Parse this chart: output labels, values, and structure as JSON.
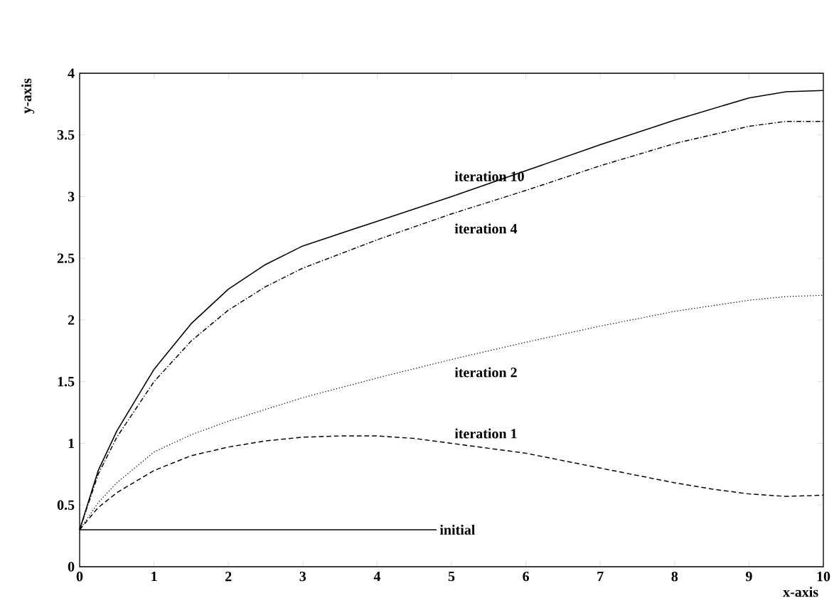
{
  "chart_data": {
    "type": "line",
    "xlabel": "x-axis",
    "ylabel": "y-axis",
    "xlim": [
      0,
      10
    ],
    "ylim": [
      0,
      4
    ],
    "xticks": [
      0,
      1,
      2,
      3,
      4,
      5,
      6,
      7,
      8,
      9,
      10
    ],
    "yticks": [
      0,
      0.5,
      1,
      1.5,
      2,
      2.5,
      3,
      3.5,
      4
    ],
    "grid": false,
    "legend": false,
    "series": [
      {
        "name": "initial",
        "color": "#000000",
        "line_style": "solid",
        "x": [
          0,
          4.8
        ],
        "values": [
          0.3,
          0.3
        ]
      },
      {
        "name": "iteration 1",
        "color": "#000000",
        "line_style": "dashed",
        "x": [
          0,
          0.25,
          0.5,
          1,
          1.5,
          2,
          2.5,
          3,
          3.5,
          4,
          4.5,
          5,
          6,
          7,
          8,
          8.5,
          9,
          9.5,
          10
        ],
        "values": [
          0.3,
          0.48,
          0.6,
          0.78,
          0.9,
          0.97,
          1.02,
          1.05,
          1.06,
          1.06,
          1.04,
          1.0,
          0.92,
          0.8,
          0.68,
          0.63,
          0.59,
          0.57,
          0.58
        ]
      },
      {
        "name": "iteration 2",
        "color": "#000000",
        "line_style": "dotted",
        "x": [
          0,
          0.25,
          0.5,
          1,
          1.5,
          2,
          3,
          4,
          5,
          6,
          7,
          8,
          9,
          9.5,
          10
        ],
        "values": [
          0.3,
          0.52,
          0.68,
          0.93,
          1.07,
          1.18,
          1.37,
          1.53,
          1.68,
          1.82,
          1.95,
          2.07,
          2.16,
          2.19,
          2.2
        ]
      },
      {
        "name": "iteration 4",
        "color": "#000000",
        "line_style": "dashdot",
        "x": [
          0,
          0.25,
          0.5,
          1,
          1.5,
          2,
          2.5,
          3,
          4,
          5,
          6,
          7,
          8,
          9,
          9.5,
          10
        ],
        "values": [
          0.3,
          0.75,
          1.05,
          1.5,
          1.83,
          2.08,
          2.27,
          2.42,
          2.65,
          2.86,
          3.05,
          3.25,
          3.43,
          3.57,
          3.61,
          3.61
        ]
      },
      {
        "name": "iteration 10",
        "color": "#000000",
        "line_style": "solid",
        "x": [
          0,
          0.25,
          0.5,
          1,
          1.5,
          2,
          2.5,
          3,
          4,
          5,
          6,
          7,
          8,
          9,
          9.5,
          10
        ],
        "values": [
          0.3,
          0.78,
          1.1,
          1.6,
          1.97,
          2.25,
          2.45,
          2.6,
          2.8,
          3.0,
          3.21,
          3.42,
          3.62,
          3.8,
          3.85,
          3.86
        ]
      }
    ]
  }
}
